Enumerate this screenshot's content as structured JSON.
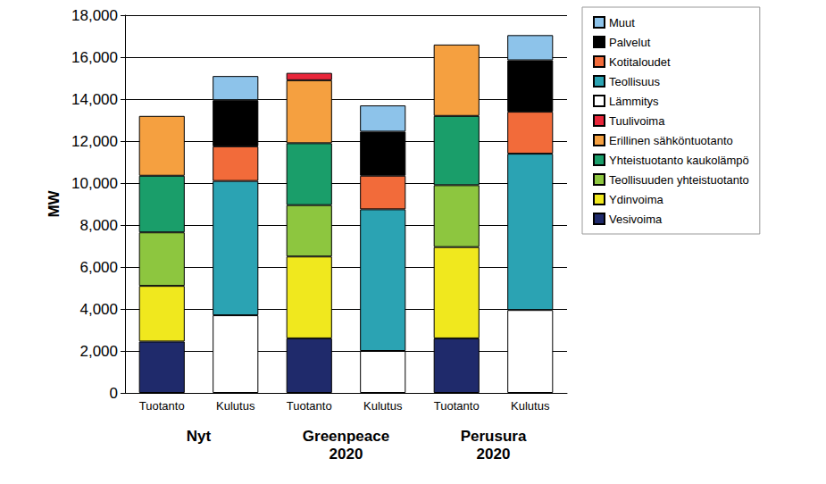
{
  "chart_data": {
    "type": "bar",
    "stacked": true,
    "grid": true,
    "legend": "right",
    "y_label": "MW",
    "ylim": [
      0,
      18000
    ],
    "yticks": [
      0,
      2000,
      4000,
      6000,
      8000,
      10000,
      12000,
      14000,
      16000,
      18000
    ],
    "categories": [
      "Tuotanto",
      "Kulutus",
      "Tuotanto",
      "Kulutus",
      "Tuotanto",
      "Kulutus"
    ],
    "groups": [
      "Nyt",
      "Greenpeace 2020",
      "Perusura 2020"
    ],
    "series": [
      {
        "name": "Vesivoima",
        "color": "#1f2a6b",
        "values": [
          2450,
          null,
          2600,
          null,
          2600,
          null
        ]
      },
      {
        "name": "Ydinvoima",
        "color": "#f0e81e",
        "values": [
          2650,
          null,
          3900,
          null,
          4350,
          null
        ]
      },
      {
        "name": "Teollisuuden yhteistuotanto",
        "color": "#8dc63f",
        "values": [
          2550,
          null,
          2450,
          null,
          2950,
          null
        ]
      },
      {
        "name": "Yhteistuotanto kaukolämpö",
        "color": "#1a9e6a",
        "values": [
          2700,
          null,
          2950,
          null,
          3300,
          null
        ]
      },
      {
        "name": "Erillinen sähköntuotanto",
        "color": "#f5a040",
        "values": [
          2850,
          null,
          3000,
          null,
          3400,
          null
        ]
      },
      {
        "name": "Tuulivoima",
        "color": "#e8263a",
        "values": [
          null,
          null,
          350,
          null,
          null,
          null
        ]
      },
      {
        "name": "Lämmitys",
        "color": "#ffffff",
        "values": [
          null,
          3700,
          null,
          2000,
          null,
          3950
        ]
      },
      {
        "name": "Teollisuus",
        "color": "#2ba3b3",
        "values": [
          null,
          6400,
          null,
          6750,
          null,
          7450
        ]
      },
      {
        "name": "Kotitaloudet",
        "color": "#f26b3a",
        "values": [
          null,
          1650,
          null,
          1600,
          null,
          2000
        ]
      },
      {
        "name": "Palvelut",
        "color": "#000000",
        "values": [
          null,
          2200,
          null,
          2100,
          null,
          2450
        ]
      },
      {
        "name": "Muut",
        "color": "#8dc3ea",
        "values": [
          null,
          1150,
          null,
          1250,
          null,
          1200
        ]
      }
    ]
  }
}
